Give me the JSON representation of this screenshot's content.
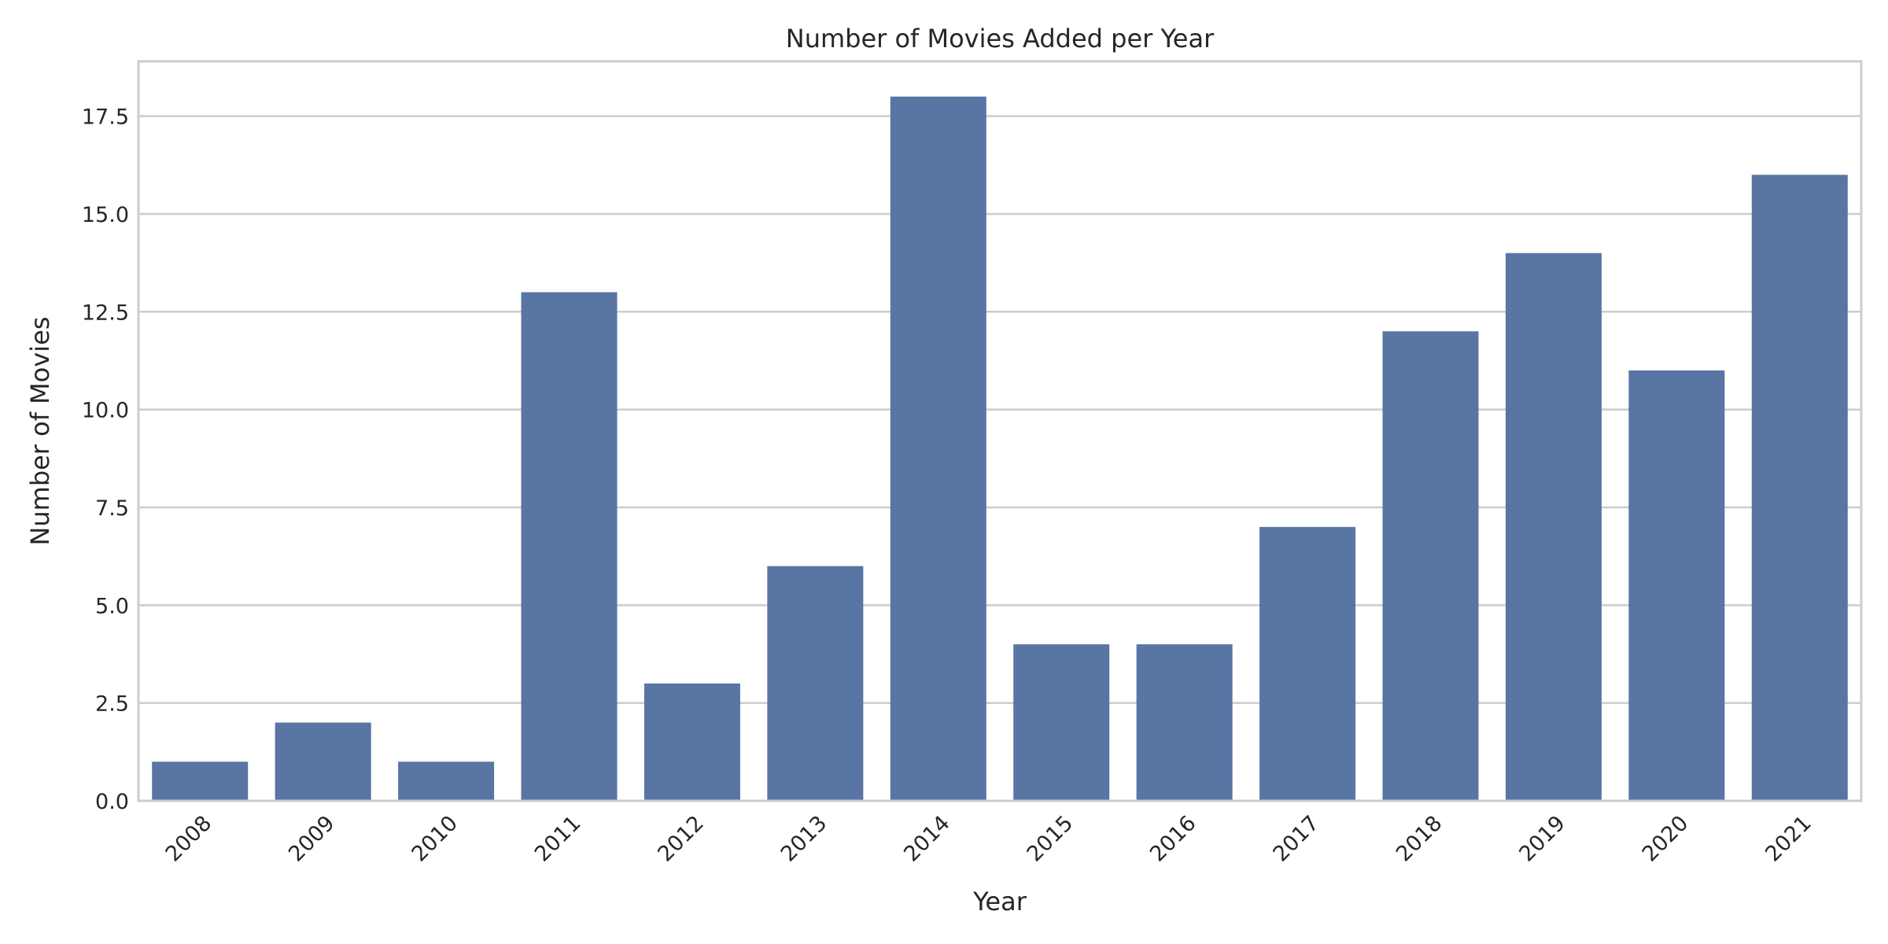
{
  "chart_data": {
    "type": "bar",
    "title": "Number of Movies Added per Year",
    "xlabel": "Year",
    "ylabel": "Number of Movies",
    "categories": [
      "2008",
      "2009",
      "2010",
      "2011",
      "2012",
      "2013",
      "2014",
      "2015",
      "2016",
      "2017",
      "2018",
      "2019",
      "2020",
      "2021"
    ],
    "values": [
      1,
      2,
      1,
      13,
      3,
      6,
      18,
      4,
      4,
      7,
      12,
      14,
      11,
      16
    ],
    "ylim": [
      0,
      18.9
    ],
    "yticks": [
      "0.0",
      "2.5",
      "5.0",
      "7.5",
      "10.0",
      "12.5",
      "15.0",
      "17.5"
    ],
    "grid": "horizontal",
    "bar_color": "#5975a4",
    "grid_color": "#cccccc",
    "text_color": "#262626"
  }
}
